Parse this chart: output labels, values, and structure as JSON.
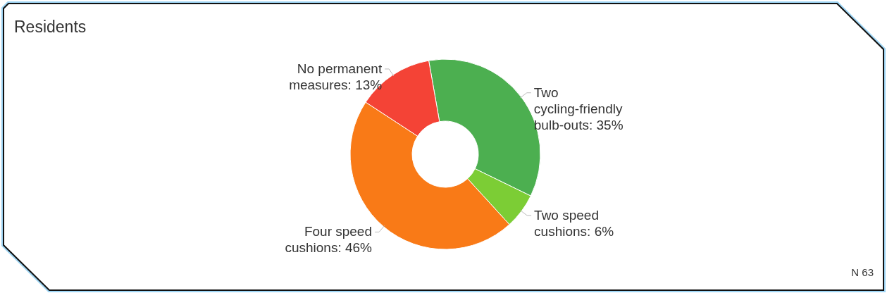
{
  "chart_data": {
    "type": "donut",
    "title": "Residents",
    "categories": [
      "Two cycling-friendly bulb-outs",
      "Two speed cushions",
      "Four speed cushions",
      "No permanent measures"
    ],
    "values": [
      35,
      6,
      46,
      13
    ],
    "value_labels": [
      "35%",
      "6%",
      "46%",
      "13%"
    ],
    "colors": [
      "#4caf50",
      "#7ccd35",
      "#f97a17",
      "#f44336"
    ],
    "annotations": [
      "N 63"
    ]
  }
}
